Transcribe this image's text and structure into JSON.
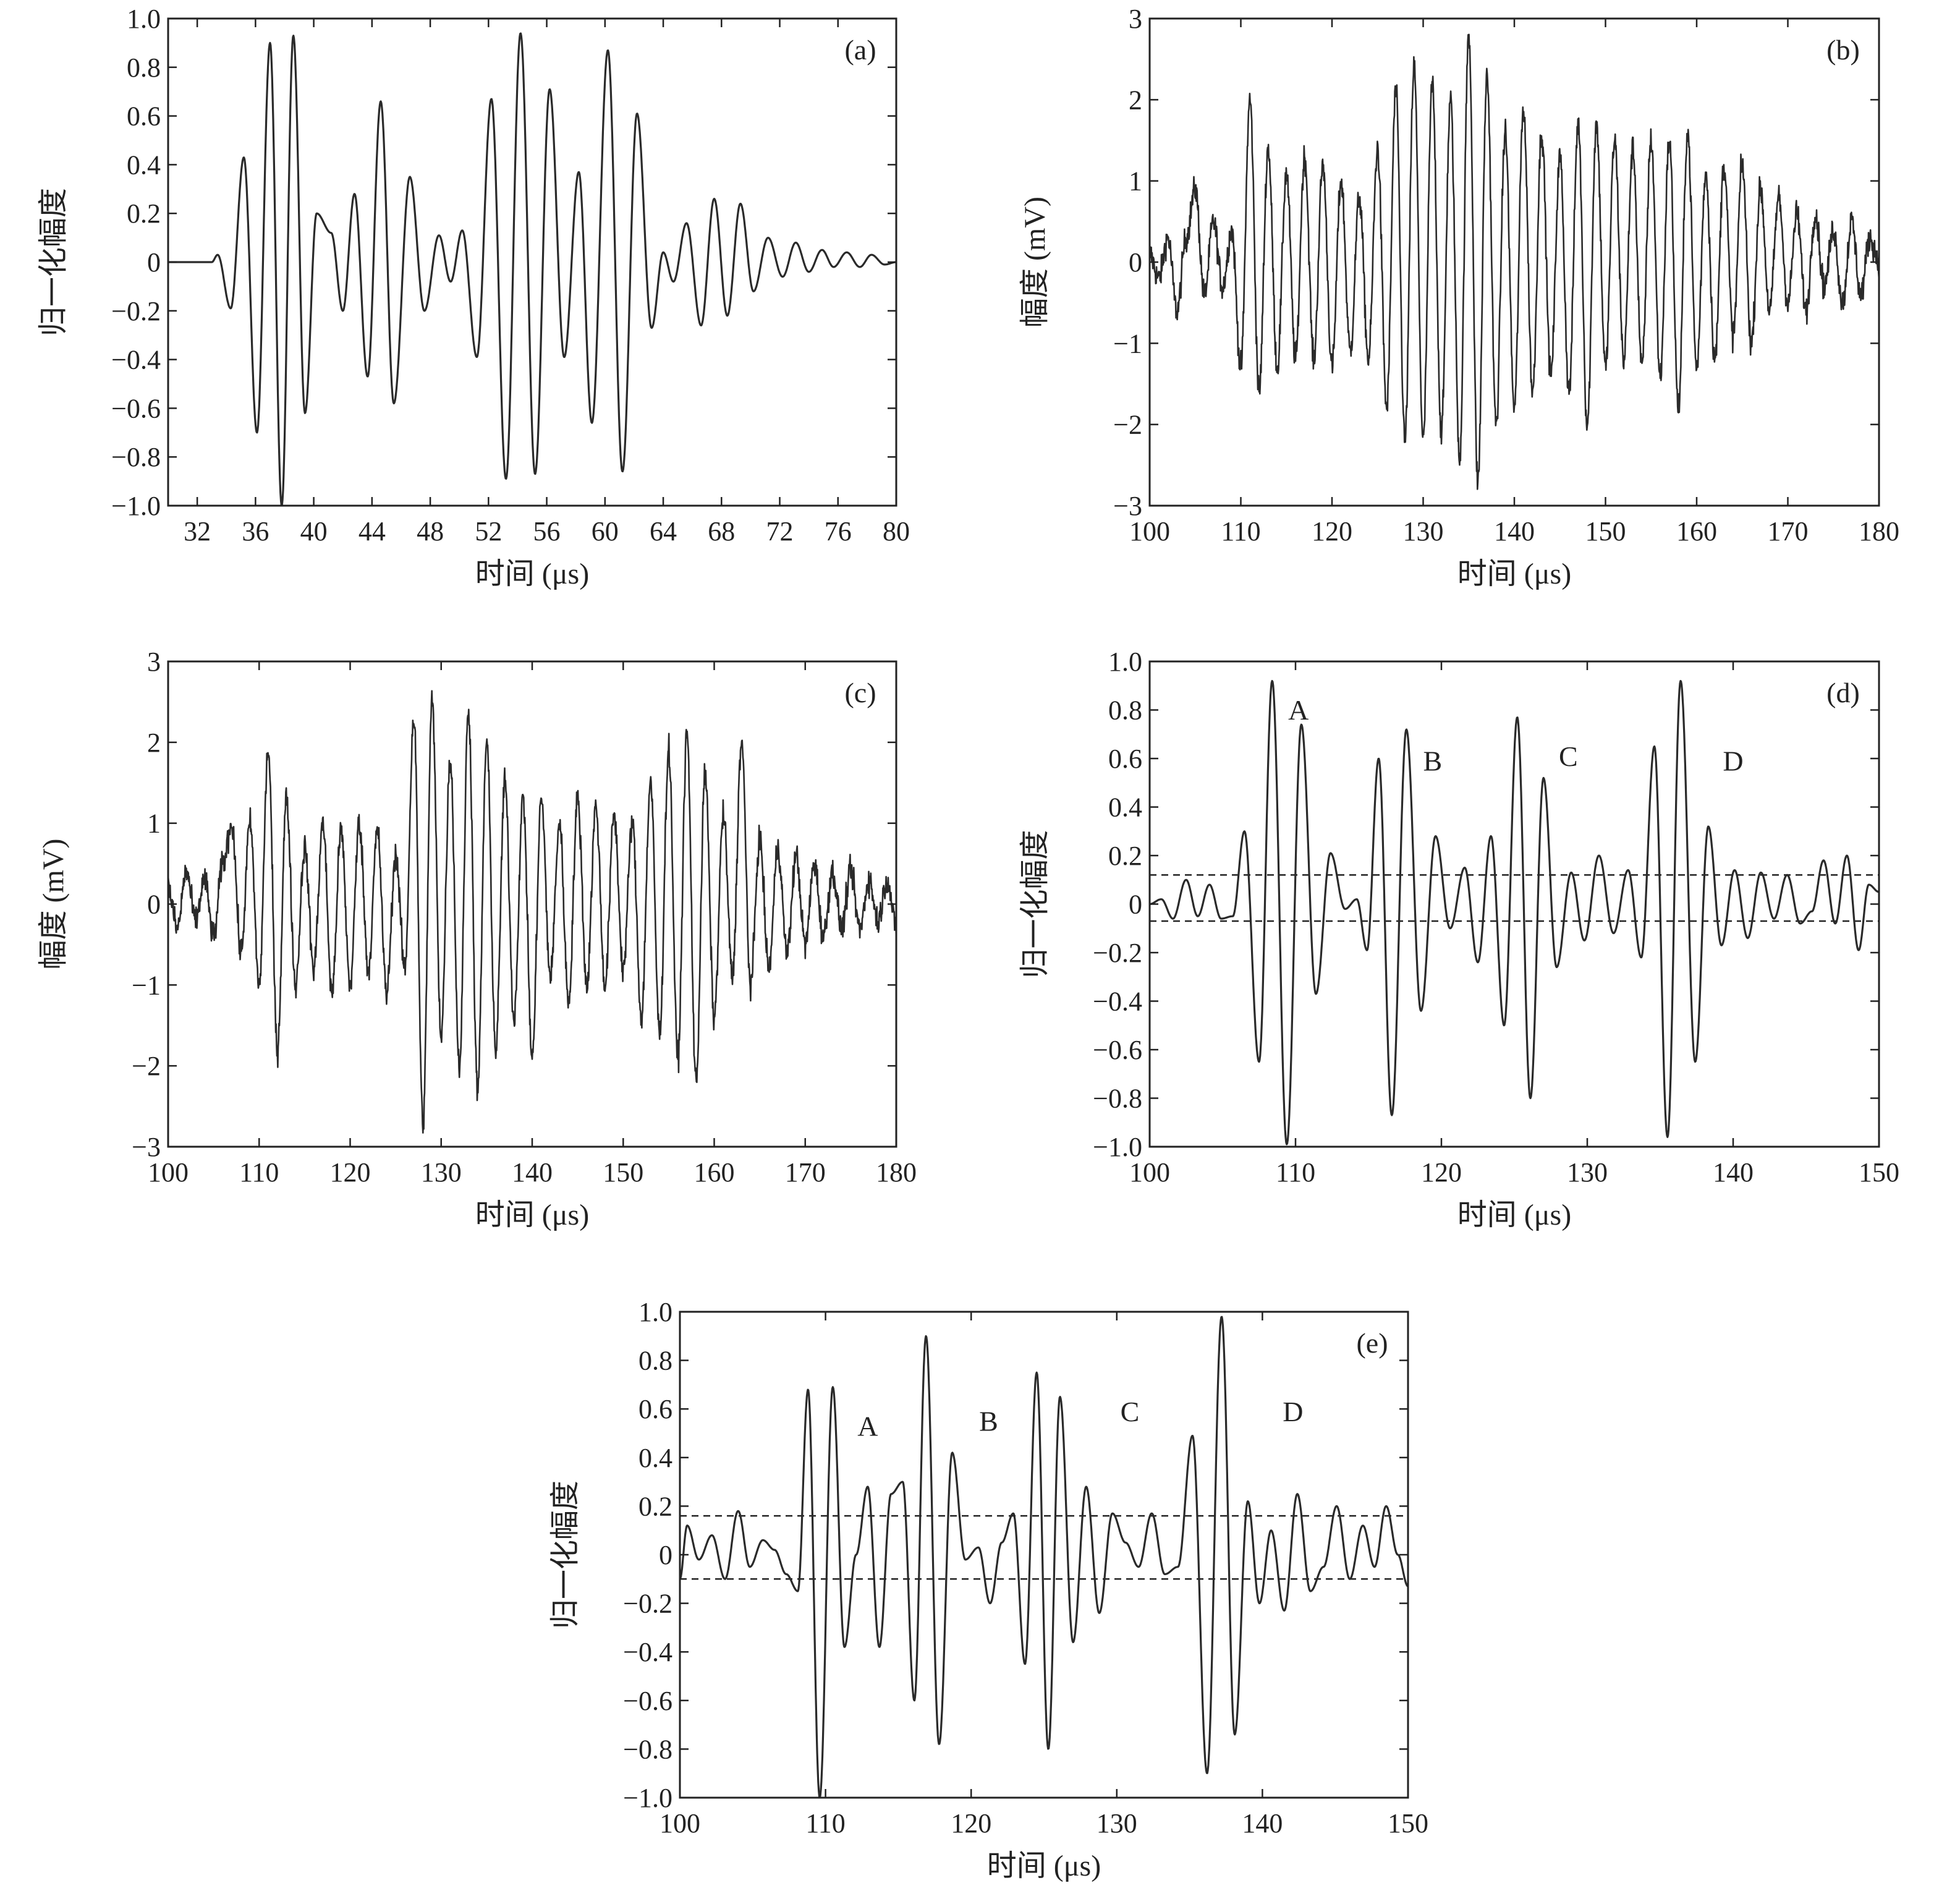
{
  "chart_data": [
    {
      "id": "a",
      "panel_label": "(a)",
      "type": "line",
      "xlabel": "时间 (μs)",
      "ylabel": "归一化幅度",
      "xlim": [
        30,
        80
      ],
      "ylim": [
        -1.0,
        1.0
      ],
      "xticks": [
        32,
        36,
        40,
        44,
        48,
        52,
        56,
        60,
        64,
        68,
        72,
        76,
        80
      ],
      "xtick_labels": [
        "32",
        "36",
        "40",
        "44",
        "48",
        "52",
        "56",
        "60",
        "64",
        "68",
        "72",
        "76",
        "80"
      ],
      "yticks": [
        -1.0,
        -0.8,
        -0.6,
        -0.4,
        -0.2,
        0,
        0.2,
        0.4,
        0.6,
        0.8,
        1.0
      ],
      "ytick_labels": [
        "−1.0",
        "−0.8",
        "−0.6",
        "−0.4",
        "−0.2",
        "0",
        "0.2",
        "0.4",
        "0.6",
        "0.8",
        "1.0"
      ],
      "noise": 0,
      "series": [
        {
          "x": [
            30.0,
            33.0,
            33.4,
            34.3,
            35.2,
            36.1,
            37.0,
            37.8,
            38.6,
            39.4,
            40.2,
            41.2,
            42.0,
            42.8,
            43.7,
            44.6,
            45.5,
            46.6,
            47.6,
            48.6,
            49.4,
            50.2,
            51.2,
            52.2,
            53.2,
            54.2,
            55.2,
            56.2,
            57.2,
            58.2,
            59.1,
            60.2,
            61.2,
            62.2,
            63.2,
            64.0,
            64.7,
            65.6,
            66.6,
            67.5,
            68.4,
            69.3,
            70.2,
            71.2,
            72.2,
            73.1,
            74.0,
            74.9,
            75.7,
            76.6,
            77.5,
            78.3,
            79.2,
            80.0
          ],
          "y": [
            0.0,
            0.0,
            0.03,
            -0.19,
            0.43,
            -0.7,
            0.9,
            -1.0,
            0.93,
            -0.62,
            0.2,
            0.12,
            -0.2,
            0.28,
            -0.47,
            0.66,
            -0.58,
            0.35,
            -0.2,
            0.11,
            -0.08,
            0.13,
            -0.39,
            0.67,
            -0.89,
            0.94,
            -0.87,
            0.71,
            -0.39,
            0.37,
            -0.66,
            0.87,
            -0.86,
            0.61,
            -0.27,
            0.04,
            -0.08,
            0.16,
            -0.26,
            0.26,
            -0.22,
            0.24,
            -0.12,
            0.1,
            -0.06,
            0.08,
            -0.04,
            0.05,
            -0.02,
            0.04,
            -0.02,
            0.03,
            -0.01,
            0.0
          ]
        }
      ]
    },
    {
      "id": "b",
      "panel_label": "(b)",
      "type": "line",
      "xlabel": "时间 (μs)",
      "ylabel": "幅度 (mV)",
      "xlim": [
        100,
        180
      ],
      "ylim": [
        -3,
        3
      ],
      "xticks": [
        100,
        110,
        120,
        130,
        140,
        150,
        160,
        170,
        180
      ],
      "xtick_labels": [
        "100",
        "110",
        "120",
        "130",
        "140",
        "150",
        "160",
        "170",
        "180"
      ],
      "yticks": [
        -3,
        -2,
        -1,
        0,
        1,
        2,
        3
      ],
      "ytick_labels": [
        "−3",
        "−2",
        "−1",
        "0",
        "1",
        "2",
        "3"
      ],
      "noise": 0.17,
      "series": [
        {
          "x": [
            100.0,
            101.0,
            102.0,
            103.0,
            104.0,
            105.0,
            106.0,
            107.0,
            108.0,
            109.0,
            110.0,
            111.0,
            112.0,
            113.0,
            114.0,
            115.0,
            116.0,
            117.0,
            118.0,
            119.0,
            120.0,
            121.0,
            122.0,
            123.0,
            124.0,
            125.0,
            126.0,
            127.0,
            128.0,
            129.0,
            130.0,
            131.0,
            132.0,
            133.0,
            134.0,
            135.0,
            136.0,
            137.0,
            138.0,
            139.0,
            140.0,
            141.0,
            142.0,
            143.0,
            144.0,
            145.0,
            146.0,
            147.0,
            148.0,
            149.0,
            150.0,
            151.0,
            152.0,
            153.0,
            154.0,
            155.0,
            156.0,
            157.0,
            158.0,
            159.0,
            160.0,
            161.0,
            162.0,
            163.0,
            164.0,
            165.0,
            166.0,
            167.0,
            168.0,
            169.0,
            170.0,
            171.0,
            172.0,
            173.0,
            174.0,
            175.0,
            176.0,
            177.0,
            178.0,
            179.0,
            180.0
          ],
          "y": [
            0.1,
            -0.2,
            0.3,
            -0.6,
            0.3,
            0.9,
            -0.4,
            0.5,
            -0.3,
            0.4,
            -1.3,
            2.0,
            -1.6,
            1.4,
            -1.3,
            1.1,
            -1.2,
            1.3,
            -1.2,
            1.2,
            -1.3,
            1.0,
            -1.1,
            0.8,
            -1.2,
            1.4,
            -1.8,
            2.1,
            -2.2,
            2.4,
            -2.2,
            2.2,
            -2.1,
            2.0,
            -2.4,
            2.8,
            -2.7,
            2.3,
            -2.0,
            1.6,
            -1.8,
            1.9,
            -1.6,
            1.6,
            -1.4,
            1.3,
            -1.6,
            1.7,
            -2.0,
            1.7,
            -1.3,
            1.5,
            -1.2,
            1.4,
            -1.3,
            1.5,
            -1.4,
            1.5,
            -1.8,
            1.6,
            -1.3,
            1.1,
            -1.2,
            1.2,
            -0.9,
            1.2,
            -1.0,
            0.9,
            -0.6,
            0.8,
            -0.5,
            0.6,
            -0.6,
            0.6,
            -0.3,
            0.4,
            -0.5,
            0.5,
            -0.4,
            0.3,
            0.0
          ]
        }
      ]
    },
    {
      "id": "c",
      "panel_label": "(c)",
      "type": "line",
      "xlabel": "时间 (μs)",
      "ylabel": "幅度 (mV)",
      "xlim": [
        100,
        180
      ],
      "ylim": [
        -3,
        3
      ],
      "xticks": [
        100,
        110,
        120,
        130,
        140,
        150,
        160,
        170,
        180
      ],
      "xtick_labels": [
        "100",
        "110",
        "120",
        "130",
        "140",
        "150",
        "160",
        "170",
        "180"
      ],
      "yticks": [
        -3,
        -2,
        -1,
        0,
        1,
        2,
        3
      ],
      "ytick_labels": [
        "−3",
        "−2",
        "−1",
        "0",
        "1",
        "2",
        "3"
      ],
      "noise": 0.17,
      "series": [
        {
          "x": [
            100.0,
            101.0,
            102.0,
            103.0,
            104.0,
            105.0,
            106.0,
            107.0,
            108.0,
            109.0,
            110.0,
            111.0,
            112.0,
            113.0,
            114.0,
            115.0,
            116.0,
            117.0,
            118.0,
            119.0,
            120.0,
            121.0,
            122.0,
            123.0,
            124.0,
            125.0,
            126.0,
            127.0,
            128.0,
            129.0,
            130.0,
            131.0,
            132.0,
            133.0,
            134.0,
            135.0,
            136.0,
            137.0,
            138.0,
            139.0,
            140.0,
            141.0,
            142.0,
            143.0,
            144.0,
            145.0,
            146.0,
            147.0,
            148.0,
            149.0,
            150.0,
            151.0,
            152.0,
            153.0,
            154.0,
            155.0,
            156.0,
            157.0,
            158.0,
            159.0,
            160.0,
            161.0,
            162.0,
            163.0,
            164.0,
            165.0,
            166.0,
            167.0,
            168.0,
            169.0,
            170.0,
            171.0,
            172.0,
            173.0,
            174.0,
            175.0,
            176.0,
            177.0,
            178.0,
            179.0,
            180.0
          ],
          "y": [
            0.2,
            -0.3,
            0.4,
            -0.2,
            0.3,
            -0.4,
            0.5,
            1.0,
            -0.6,
            1.0,
            -1.0,
            1.9,
            -1.8,
            1.3,
            -1.0,
            0.7,
            -0.8,
            1.0,
            -1.1,
            0.9,
            -1.0,
            1.0,
            -0.8,
            0.9,
            -1.1,
            0.6,
            -0.8,
            2.3,
            -2.7,
            2.5,
            -1.6,
            1.8,
            -2.0,
            2.4,
            -2.3,
            2.0,
            -1.8,
            1.5,
            -1.4,
            1.3,
            -1.9,
            1.3,
            -0.9,
            1.0,
            -1.2,
            1.3,
            -1.0,
            1.2,
            -1.0,
            1.1,
            -0.8,
            1.0,
            -1.4,
            1.5,
            -1.6,
            1.9,
            -1.9,
            2.1,
            -2.2,
            1.6,
            -1.4,
            1.1,
            -0.9,
            2.0,
            -1.0,
            0.8,
            -0.8,
            0.7,
            -0.6,
            0.6,
            -0.5,
            0.5,
            -0.4,
            0.4,
            -0.3,
            0.4,
            -0.3,
            0.3,
            -0.2,
            0.3,
            -0.3
          ]
        }
      ]
    },
    {
      "id": "d",
      "panel_label": "(d)",
      "type": "line",
      "xlabel": "时间 (μs)",
      "ylabel": "归一化幅度",
      "xlim": [
        100,
        150
      ],
      "ylim": [
        -1.0,
        1.0
      ],
      "xticks": [
        100,
        110,
        120,
        130,
        140,
        150
      ],
      "xtick_labels": [
        "100",
        "110",
        "120",
        "130",
        "140",
        "150"
      ],
      "yticks": [
        -1.0,
        -0.8,
        -0.6,
        -0.4,
        -0.2,
        0,
        0.2,
        0.4,
        0.6,
        0.8,
        1.0
      ],
      "ytick_labels": [
        "−1.0",
        "−0.8",
        "−0.6",
        "−0.4",
        "−0.2",
        "0",
        "0.2",
        "0.4",
        "0.6",
        "0.8",
        "1.0"
      ],
      "noise": 0,
      "thresholds": [
        0.12,
        -0.07
      ],
      "annotations": [
        {
          "text": "A",
          "x": 110.2,
          "y": 0.76
        },
        {
          "text": "B",
          "x": 119.4,
          "y": 0.55
        },
        {
          "text": "C",
          "x": 128.7,
          "y": 0.57
        },
        {
          "text": "D",
          "x": 140.0,
          "y": 0.55
        }
      ],
      "series": [
        {
          "x": [
            100.0,
            100.8,
            101.6,
            102.5,
            103.3,
            104.1,
            104.9,
            105.7,
            106.5,
            107.5,
            108.4,
            109.4,
            110.4,
            111.4,
            112.4,
            113.4,
            114.2,
            114.9,
            115.7,
            116.6,
            117.6,
            118.6,
            119.6,
            120.6,
            121.6,
            122.5,
            123.4,
            124.3,
            125.2,
            126.1,
            127.0,
            127.9,
            128.9,
            129.8,
            130.8,
            131.8,
            132.8,
            133.7,
            134.6,
            135.5,
            136.4,
            137.4,
            138.3,
            139.2,
            140.1,
            141.0,
            141.9,
            142.8,
            143.7,
            144.6,
            145.4,
            146.2,
            147.0,
            147.8,
            148.6,
            149.3,
            150.0
          ],
          "y": [
            0.0,
            0.02,
            -0.06,
            0.1,
            -0.05,
            0.08,
            -0.06,
            -0.05,
            0.3,
            -0.65,
            0.92,
            -0.99,
            0.74,
            -0.37,
            0.21,
            -0.02,
            0.02,
            -0.19,
            0.6,
            -0.87,
            0.72,
            -0.44,
            0.28,
            -0.1,
            0.15,
            -0.24,
            0.28,
            -0.5,
            0.77,
            -0.8,
            0.52,
            -0.26,
            0.13,
            -0.15,
            0.2,
            -0.12,
            0.14,
            -0.22,
            0.65,
            -0.96,
            0.92,
            -0.65,
            0.32,
            -0.17,
            0.14,
            -0.14,
            0.13,
            -0.06,
            0.12,
            -0.08,
            -0.03,
            0.18,
            -0.08,
            0.2,
            -0.19,
            0.08,
            0.05
          ]
        }
      ]
    },
    {
      "id": "e",
      "panel_label": "(e)",
      "type": "line",
      "xlabel": "时间 (μs)",
      "ylabel": "归一化幅度",
      "xlim": [
        100,
        150
      ],
      "ylim": [
        -1.0,
        1.0
      ],
      "xticks": [
        100,
        110,
        120,
        130,
        140,
        150
      ],
      "xtick_labels": [
        "100",
        "110",
        "120",
        "130",
        "140",
        "150"
      ],
      "yticks": [
        -1.0,
        -0.8,
        -0.6,
        -0.4,
        -0.2,
        0,
        0.2,
        0.4,
        0.6,
        0.8,
        1.0
      ],
      "ytick_labels": [
        "−1.0",
        "−0.8",
        "−0.6",
        "−0.4",
        "−0.2",
        "0",
        "0.2",
        "0.4",
        "0.6",
        "0.8",
        "1.0"
      ],
      "noise": 0,
      "thresholds": [
        0.16,
        -0.1
      ],
      "annotations": [
        {
          "text": "A",
          "x": 112.9,
          "y": 0.49
        },
        {
          "text": "B",
          "x": 121.2,
          "y": 0.51
        },
        {
          "text": "C",
          "x": 130.9,
          "y": 0.55
        },
        {
          "text": "D",
          "x": 142.1,
          "y": 0.55
        }
      ],
      "series": [
        {
          "x": [
            100.0,
            100.5,
            101.3,
            102.2,
            103.1,
            104.0,
            104.8,
            105.7,
            106.5,
            107.3,
            108.1,
            108.8,
            109.6,
            110.5,
            111.3,
            112.1,
            112.9,
            113.7,
            114.5,
            115.3,
            116.1,
            116.9,
            117.8,
            118.7,
            119.6,
            120.5,
            121.3,
            122.1,
            122.9,
            123.7,
            124.5,
            125.3,
            126.1,
            127.0,
            127.9,
            128.8,
            129.7,
            130.6,
            131.5,
            132.4,
            133.3,
            134.2,
            135.2,
            136.2,
            137.2,
            138.1,
            139.0,
            139.8,
            140.6,
            141.5,
            142.4,
            143.3,
            144.2,
            145.1,
            146.0,
            146.9,
            147.7,
            148.5,
            149.3,
            150.0
          ],
          "y": [
            -0.1,
            0.12,
            -0.02,
            0.08,
            -0.1,
            0.18,
            -0.05,
            0.06,
            0.02,
            -0.08,
            -0.15,
            0.68,
            -1.0,
            0.69,
            -0.38,
            0.0,
            0.28,
            -0.38,
            0.25,
            0.3,
            -0.6,
            0.9,
            -0.78,
            0.42,
            -0.02,
            0.03,
            -0.2,
            0.05,
            0.17,
            -0.45,
            0.75,
            -0.8,
            0.65,
            -0.36,
            0.28,
            -0.24,
            0.17,
            0.05,
            -0.05,
            0.17,
            -0.08,
            -0.05,
            0.49,
            -0.9,
            0.98,
            -0.74,
            0.22,
            -0.2,
            0.1,
            -0.23,
            0.25,
            -0.15,
            -0.05,
            0.2,
            -0.1,
            0.12,
            -0.05,
            0.2,
            0.0,
            -0.13
          ]
        }
      ]
    }
  ]
}
